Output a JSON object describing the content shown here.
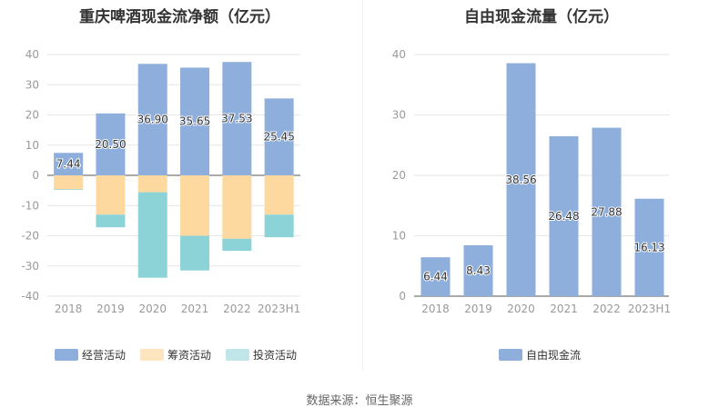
{
  "source": "数据来源：恒生聚源",
  "chart_data": [
    {
      "type": "bar",
      "stacked": true,
      "title": "重庆啤酒现金流净额（亿元）",
      "categories": [
        "2018",
        "2019",
        "2020",
        "2021",
        "2022",
        "2023H1"
      ],
      "ylim": [
        -40,
        40
      ],
      "yticks": [
        40,
        30,
        20,
        10,
        0,
        -10,
        -20,
        -30,
        -40
      ],
      "series": [
        {
          "name": "经营活动",
          "color": "#8eaedb",
          "values": [
            7.44,
            20.5,
            36.9,
            35.65,
            37.53,
            25.45
          ],
          "labels": [
            "7.44",
            "20.50",
            "36.90",
            "35.65",
            "37.53",
            "25.45"
          ]
        },
        {
          "name": "筹资活动",
          "color": "#fdd9a0",
          "values": [
            -4.6,
            -13.0,
            -5.6,
            -20.0,
            -21.0,
            -13.0
          ]
        },
        {
          "name": "投资活动",
          "color": "#8cd3d8",
          "values": [
            -0.2,
            -4.2,
            -28.3,
            -11.5,
            -4.0,
            -7.5
          ]
        }
      ],
      "legend": [
        "经营活动",
        "筹资活动",
        "投资活动"
      ],
      "legend_colors": [
        "#8eaedb",
        "#fde5c0",
        "#c0e6e9"
      ]
    },
    {
      "type": "bar",
      "title": "自由现金流量（亿元）",
      "categories": [
        "2018",
        "2019",
        "2020",
        "2021",
        "2022",
        "2023H1"
      ],
      "ylim": [
        0,
        40
      ],
      "yticks": [
        40,
        30,
        20,
        10,
        0
      ],
      "series": [
        {
          "name": "自由现金流",
          "color": "#8eaedb",
          "values": [
            6.44,
            8.43,
            38.56,
            26.48,
            27.88,
            16.13
          ],
          "labels": [
            "6.44",
            "8.43",
            "38.56",
            "26.48",
            "27.88",
            "16.13"
          ]
        }
      ],
      "legend": [
        "自由现金流"
      ],
      "legend_colors": [
        "#8eaedb"
      ]
    }
  ]
}
